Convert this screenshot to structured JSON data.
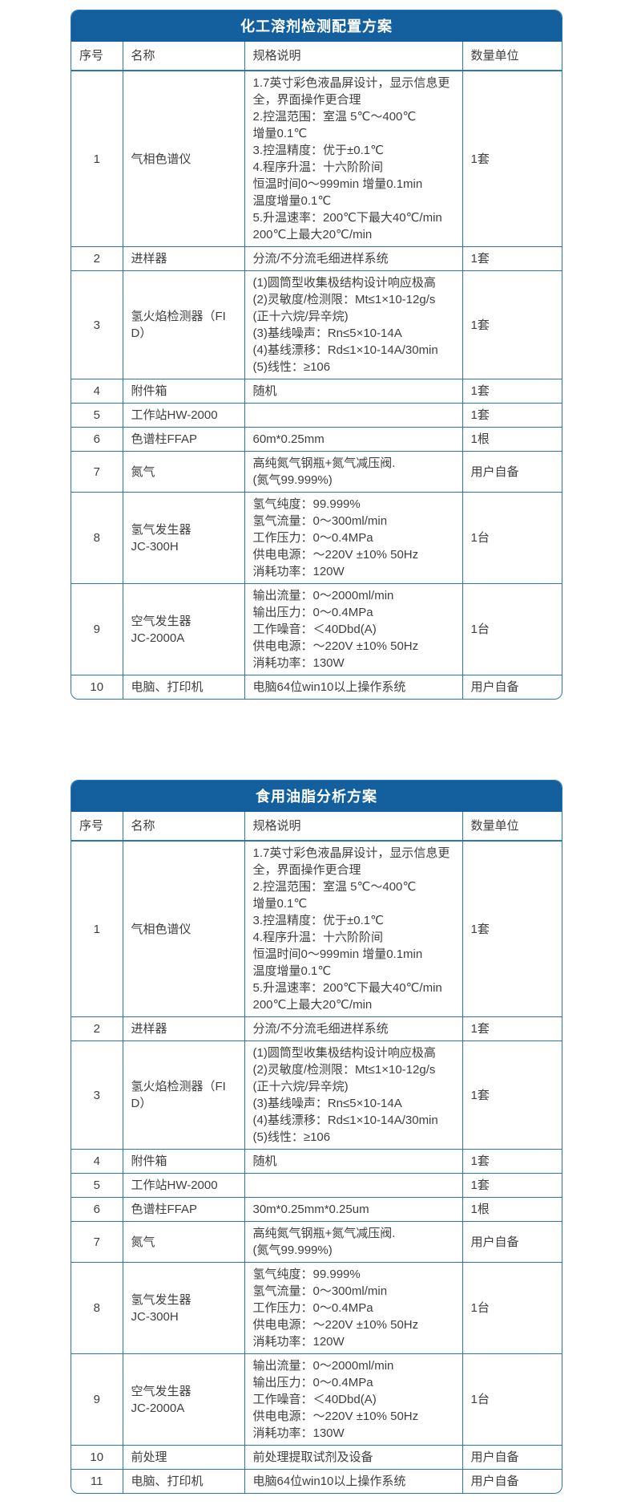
{
  "columns": {
    "no": "序号",
    "name": "名称",
    "spec": "规格说明",
    "qty": "数量单位"
  },
  "colors": {
    "header_bg": "#14609f",
    "border": "#2e75b6",
    "text": "#3f3f3f"
  },
  "tables": [
    {
      "title": "化工溶剂检测配置方案",
      "rows": [
        {
          "no": "1",
          "name": [
            "气相色谱仪"
          ],
          "spec": [
            "1.7英寸彩色液晶屏设计，显示信息更全，界面操作更合理",
            "2.控温范围：室温 5℃～400℃",
            "增量0.1℃",
            "3.控温精度：优于±0.1℃",
            "4.程序升温：十六阶阶间",
            "恒温时间0～999min 增量0.1min",
            "温度增量0.1℃",
            "5.升温速率：200℃下最大40℃/min",
            "200℃上最大20℃/min"
          ],
          "qty": "1套"
        },
        {
          "no": "2",
          "name": [
            "进样器"
          ],
          "spec": [
            "分流/不分流毛细进样系统"
          ],
          "qty": "1套"
        },
        {
          "no": "3",
          "name": [
            "氢火焰检测器（FID）"
          ],
          "spec": [
            "(1)圆筒型收集极结构设计响应极高",
            "(2)灵敏度/检测限：Mt≤1×10-12g/s",
            "(正十六烷/异辛烷)",
            "(3)基线噪声：Rn≤5×10-14A",
            "(4)基线漂移：Rd≤1×10-14A/30min",
            "(5)线性：≥106"
          ],
          "qty": "1套"
        },
        {
          "no": "4",
          "name": [
            "附件箱"
          ],
          "spec": [
            "随机"
          ],
          "qty": "1套"
        },
        {
          "no": "5",
          "name": [
            "工作站HW-2000"
          ],
          "spec": [],
          "qty": "1套"
        },
        {
          "no": "6",
          "name": [
            "色谱柱FFAP"
          ],
          "spec": [
            "60m*0.25mm"
          ],
          "qty": "1根"
        },
        {
          "no": "7",
          "name": [
            "氮气"
          ],
          "spec": [
            "高纯氮气钢瓶+氮气减压阀.",
            "(氮气99.999%)"
          ],
          "qty": "用户自备"
        },
        {
          "no": "8",
          "name": [
            "氢气发生器",
            "JC-300H"
          ],
          "spec": [
            "氢气纯度：99.999%",
            "氢气流量：0～300ml/min",
            "工作压力：0～0.4MPa",
            "供电电源：～220V ±10% 50Hz",
            "消耗功率：120W"
          ],
          "qty": "1台"
        },
        {
          "no": "9",
          "name": [
            "空气发生器",
            "JC-2000A"
          ],
          "spec": [
            "输出流量：0～2000ml/min",
            "输出压力：0～0.4MPa",
            "工作噪音：＜40Dbd(A)",
            "供电电源：～220V ±10% 50Hz",
            "消耗功率：130W"
          ],
          "qty": "1台"
        },
        {
          "no": "10",
          "name": [
            "电脑、打印机"
          ],
          "spec": [
            "电脑64位win10以上操作系统"
          ],
          "qty": "用户自备"
        }
      ]
    },
    {
      "title": "食用油脂分析方案",
      "rows": [
        {
          "no": "1",
          "name": [
            "气相色谱仪"
          ],
          "spec": [
            "1.7英寸彩色液晶屏设计，显示信息更全，界面操作更合理",
            "2.控温范围：室温 5℃～400℃",
            "增量0.1℃",
            "3.控温精度：优于±0.1℃",
            "4.程序升温：十六阶阶间",
            "恒温时间0～999min 增量0.1min",
            "温度增量0.1℃",
            "5.升温速率：200℃下最大40℃/min",
            "200℃上最大20℃/min"
          ],
          "qty": "1套"
        },
        {
          "no": "2",
          "name": [
            "进样器"
          ],
          "spec": [
            "分流/不分流毛细进样系统"
          ],
          "qty": "1套"
        },
        {
          "no": "3",
          "name": [
            "氢火焰检测器（FID）"
          ],
          "spec": [
            "(1)圆筒型收集极结构设计响应极高",
            "(2)灵敏度/检测限：Mt≤1×10-12g/s",
            "(正十六烷/异辛烷)",
            "(3)基线噪声：Rn≤5×10-14A",
            "(4)基线漂移：Rd≤1×10-14A/30min",
            "(5)线性：≥106"
          ],
          "qty": "1套"
        },
        {
          "no": "4",
          "name": [
            "附件箱"
          ],
          "spec": [
            "随机"
          ],
          "qty": "1套"
        },
        {
          "no": "5",
          "name": [
            "工作站HW-2000"
          ],
          "spec": [],
          "qty": "1套"
        },
        {
          "no": "6",
          "name": [
            "色谱柱FFAP"
          ],
          "spec": [
            "30m*0.25mm*0.25um"
          ],
          "qty": "1根"
        },
        {
          "no": "7",
          "name": [
            "氮气"
          ],
          "spec": [
            "高纯氮气钢瓶+氮气减压阀.",
            "(氮气99.999%)"
          ],
          "qty": "用户自备"
        },
        {
          "no": "8",
          "name": [
            "氢气发生器",
            "JC-300H"
          ],
          "spec": [
            "氢气纯度：99.999%",
            "氢气流量：0～300ml/min",
            "工作压力：0～0.4MPa",
            "供电电源：～220V ±10% 50Hz",
            "消耗功率：120W"
          ],
          "qty": "1台"
        },
        {
          "no": "9",
          "name": [
            "空气发生器",
            "JC-2000A"
          ],
          "spec": [
            "输出流量：0～2000ml/min",
            "输出压力：0～0.4MPa",
            "工作噪音：＜40Dbd(A)",
            "供电电源：～220V ±10% 50Hz",
            "消耗功率：130W"
          ],
          "qty": "1台"
        },
        {
          "no": "10",
          "name": [
            "前处理"
          ],
          "spec": [
            "前处理提取试剂及设备"
          ],
          "qty": "用户自备"
        },
        {
          "no": "11",
          "name": [
            "电脑、打印机"
          ],
          "spec": [
            "电脑64位win10以上操作系统"
          ],
          "qty": "用户自备"
        }
      ]
    }
  ]
}
